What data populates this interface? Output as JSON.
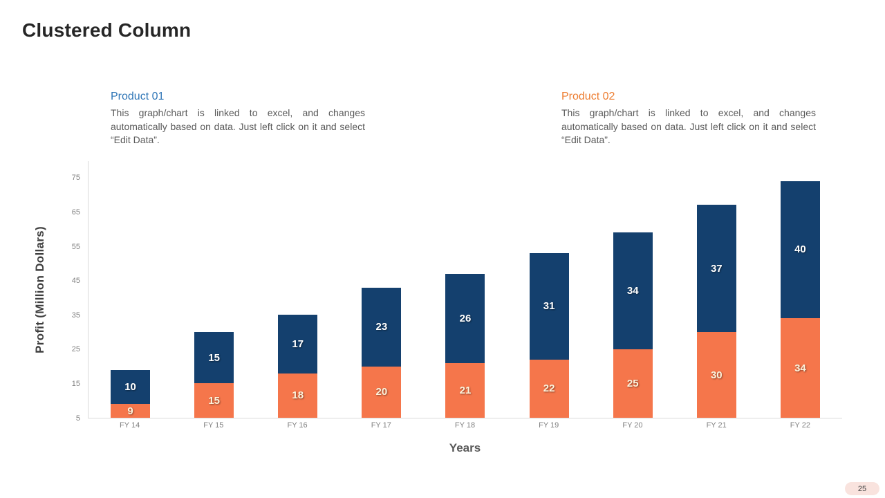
{
  "slide": {
    "title": "Clustered Column",
    "page_number": "25"
  },
  "notes": [
    {
      "name": "Product 01",
      "accent_color": "#2E75B6",
      "description": "This graph/chart is linked to excel, and changes automatically based on data. Just left click on it and select “Edit Data”."
    },
    {
      "name": "Product 02",
      "accent_color": "#ED7D31",
      "description": "This graph/chart is linked to excel, and changes automatically based on data. Just left click on it and select “Edit Data”."
    }
  ],
  "chart_data": {
    "type": "bar",
    "variant": "stacked-column",
    "title": "",
    "categories": [
      "FY 14",
      "FY 15",
      "FY 16",
      "FY 17",
      "FY 18",
      "FY 19",
      "FY 20",
      "FY 21",
      "FY 22"
    ],
    "series": [
      {
        "name": "Product 02",
        "position": "bottom",
        "color": "#F5764B",
        "label_color": "#FCF3DC",
        "values": [
          9,
          15,
          18,
          20,
          21,
          22,
          25,
          30,
          34
        ]
      },
      {
        "name": "Product 01",
        "position": "top",
        "color": "#14406E",
        "label_color": "#FFFFFF",
        "values": [
          10,
          15,
          17,
          23,
          26,
          31,
          34,
          37,
          40
        ]
      }
    ],
    "xlabel": "Years",
    "ylabel": "Profit (Million Dollars)",
    "yticks": [
      5,
      15,
      25,
      35,
      45,
      55,
      65,
      75
    ],
    "ylim": [
      5,
      80
    ],
    "grid": false,
    "legend": "none",
    "axis_color": "#D9D9D9"
  }
}
